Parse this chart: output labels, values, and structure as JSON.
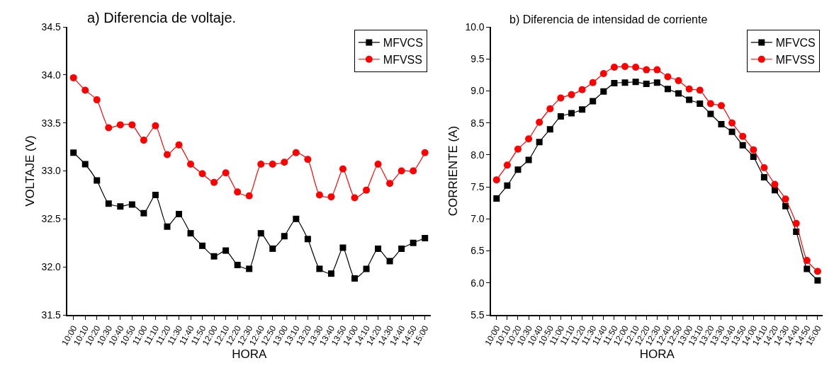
{
  "chart_data": [
    {
      "type": "line",
      "title": "a) Diferencia de voltaje.",
      "xlabel": "HORA",
      "ylabel": "VOLTAJE (V)",
      "categories": [
        "10:00",
        "10:10",
        "10:20",
        "10:30",
        "10:40",
        "10:50",
        "11:00",
        "11:10",
        "11:20",
        "11:30",
        "11:40",
        "11:50",
        "12:00",
        "12:10",
        "12:20",
        "12:30",
        "12:40",
        "12:50",
        "13:00",
        "13:10",
        "13:20",
        "13:30",
        "13:40",
        "13:50",
        "14:00",
        "14:10",
        "14:20",
        "14:30",
        "14:40",
        "14:50",
        "15:00"
      ],
      "series": [
        {
          "name": "MFVCS",
          "color": "#000000",
          "marker": "square",
          "values": [
            33.19,
            33.07,
            32.9,
            32.66,
            32.63,
            32.65,
            32.56,
            32.75,
            32.42,
            32.55,
            32.35,
            32.22,
            32.11,
            32.17,
            32.02,
            31.98,
            32.35,
            32.19,
            32.32,
            32.5,
            32.29,
            31.98,
            31.93,
            32.2,
            31.88,
            31.98,
            32.19,
            32.06,
            32.19,
            32.25,
            32.3
          ]
        },
        {
          "name": "MFVSS",
          "color": "#ff0000",
          "marker": "circle",
          "values": [
            33.97,
            33.84,
            33.74,
            33.45,
            33.48,
            33.48,
            33.32,
            33.47,
            33.17,
            33.27,
            33.07,
            32.97,
            32.88,
            32.98,
            32.78,
            32.74,
            33.07,
            33.07,
            33.09,
            33.19,
            33.12,
            32.75,
            32.73,
            33.02,
            32.72,
            32.8,
            33.07,
            32.87,
            33.0,
            33.0,
            33.19
          ]
        }
      ],
      "ylim": [
        31.5,
        34.5
      ],
      "yticks": [
        31.5,
        {
          "value": 32,
          "label": "32.0"
        },
        32.5,
        {
          "value": 33,
          "label": "33.0"
        },
        33.5,
        {
          "value": 34,
          "label": "34.0"
        },
        34.5
      ],
      "legend": "top right"
    },
    {
      "type": "line",
      "title": "b) Diferencia de intensidad de corriente",
      "xlabel": "HORA",
      "ylabel": "CORRIENTE (A)",
      "categories": [
        "10:00",
        "10:10",
        "10:20",
        "10:30",
        "10:40",
        "10:50",
        "11:00",
        "11:10",
        "11:20",
        "11:30",
        "11:40",
        "11:50",
        "12:00",
        "12:10",
        "12:20",
        "12:30",
        "12:40",
        "12:50",
        "13:00",
        "13:10",
        "13:20",
        "13:30",
        "13:40",
        "13:50",
        "14:00",
        "14:10",
        "14:20",
        "14:30",
        "14:40",
        "14:50",
        "15:00"
      ],
      "series": [
        {
          "name": "MFVCS",
          "color": "#000000",
          "marker": "square",
          "values": [
            7.32,
            7.52,
            7.77,
            7.92,
            8.2,
            8.4,
            8.6,
            8.65,
            8.71,
            8.84,
            8.99,
            9.12,
            9.13,
            9.14,
            9.11,
            9.13,
            9.03,
            8.96,
            8.86,
            8.8,
            8.64,
            8.48,
            8.36,
            8.15,
            7.97,
            7.65,
            7.45,
            7.2,
            6.8,
            6.22,
            6.04
          ]
        },
        {
          "name": "MFVSS",
          "color": "#ff0000",
          "marker": "circle",
          "values": [
            7.61,
            7.84,
            8.09,
            8.25,
            8.51,
            8.72,
            8.89,
            8.94,
            9.02,
            9.13,
            9.27,
            9.37,
            9.38,
            9.37,
            9.33,
            9.33,
            9.22,
            9.16,
            9.03,
            9.01,
            8.8,
            8.77,
            8.5,
            8.29,
            8.08,
            7.8,
            7.54,
            7.31,
            6.93,
            6.35,
            6.18
          ]
        }
      ],
      "ylim": [
        5.5,
        10.0
      ],
      "yticks": [
        5.5,
        {
          "value": 6,
          "label": "6.0"
        },
        6.5,
        {
          "value": 7,
          "label": "7.0"
        },
        7.5,
        {
          "value": 8,
          "label": "8.0"
        },
        8.5,
        {
          "value": 9,
          "label": "9.0"
        },
        9.5,
        {
          "value": 10,
          "label": "10.0"
        }
      ],
      "legend": "top right"
    }
  ]
}
